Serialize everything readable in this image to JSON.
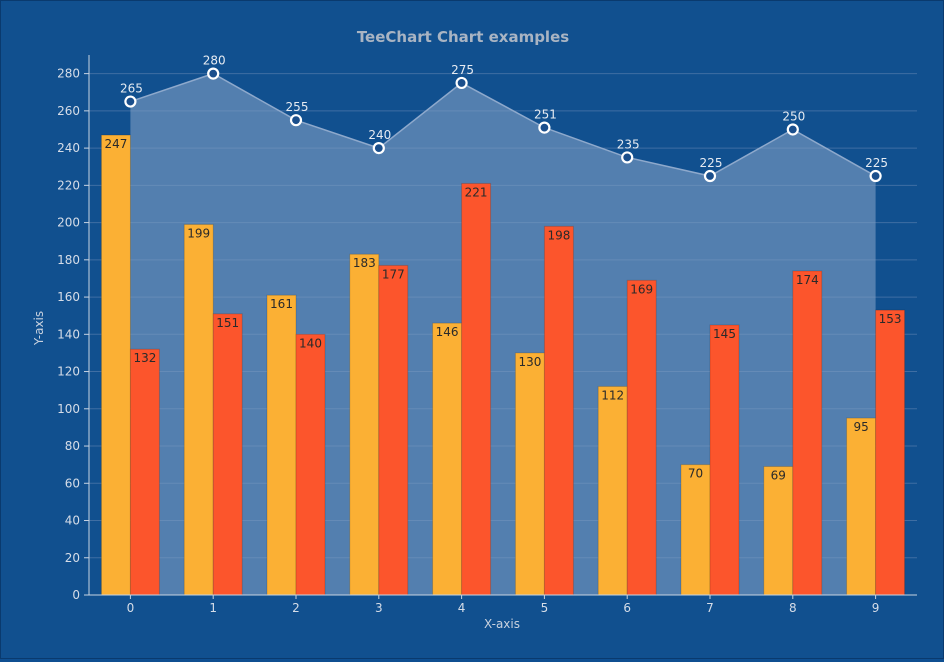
{
  "chart_data": {
    "type": "bar",
    "title": "TeeChart Chart examples",
    "xlabel": "X-axis",
    "ylabel": "Y-axis",
    "categories": [
      "0",
      "1",
      "2",
      "3",
      "4",
      "5",
      "6",
      "7",
      "8",
      "9"
    ],
    "ylim": [
      0,
      290
    ],
    "yticks": [
      0,
      20,
      40,
      60,
      80,
      100,
      120,
      140,
      160,
      180,
      200,
      220,
      240,
      260,
      280
    ],
    "grid": true,
    "series": [
      {
        "type": "bar",
        "color": "#fbb034",
        "values": [
          247,
          199,
          161,
          183,
          146,
          130,
          112,
          70,
          69,
          95
        ]
      },
      {
        "type": "bar",
        "color": "#fc552c",
        "values": [
          132,
          151,
          140,
          177,
          221,
          198,
          169,
          145,
          174,
          153
        ]
      },
      {
        "type": "area",
        "color": "#7c9cc4",
        "values": [
          265,
          280,
          255,
          240,
          275,
          251,
          235,
          225,
          250,
          225
        ]
      }
    ]
  },
  "colors": {
    "background": "#11508f",
    "axis": "#c8d3e1",
    "grid": "#3f6ea3"
  }
}
